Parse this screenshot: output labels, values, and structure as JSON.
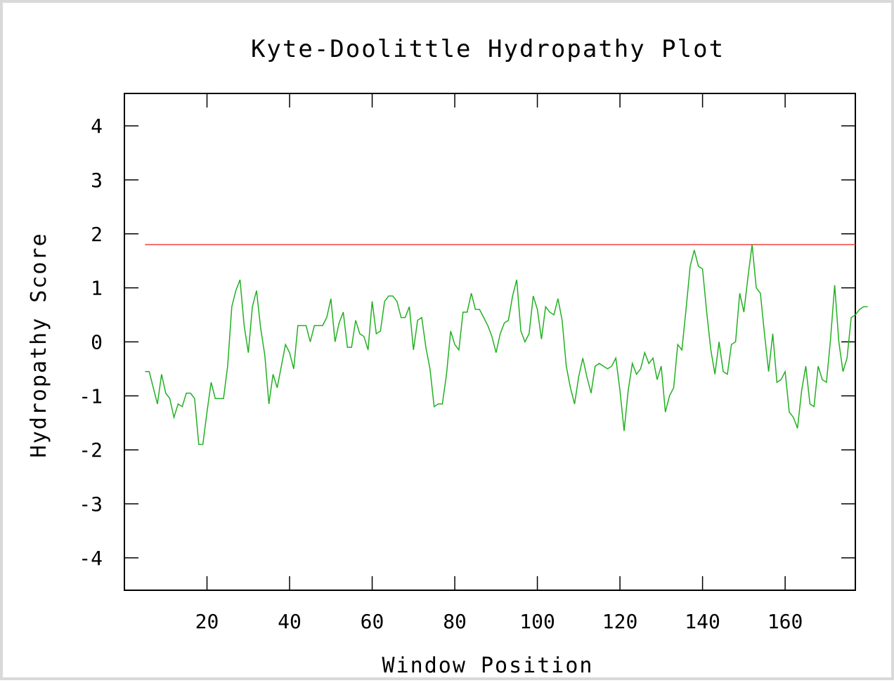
{
  "chart_data": {
    "type": "line",
    "title": "Kyte-Doolittle Hydropathy Plot",
    "xlabel": "Window Position",
    "ylabel": "Hydropathy Score",
    "xlim": [
      0,
      177
    ],
    "ylim": [
      -4.6,
      4.6
    ],
    "x_ticks": [
      20,
      40,
      60,
      80,
      100,
      120,
      140,
      160
    ],
    "x_tick_labels": [
      "20",
      "40",
      "60",
      "80",
      "100",
      "120",
      "140",
      "160"
    ],
    "y_ticks": [
      4,
      3,
      2,
      1,
      0,
      -1,
      -2,
      -3,
      -4
    ],
    "y_tick_labels": [
      "4",
      "3",
      "2",
      "1",
      "0",
      "-1",
      "-2",
      "-3",
      "-4"
    ],
    "grid": false,
    "threshold": {
      "value": 1.8,
      "color": "#f04040"
    },
    "series": [
      {
        "color": "#22b022",
        "x_start": 5,
        "y": [
          -0.55,
          -0.55,
          -0.85,
          -1.15,
          -0.6,
          -0.95,
          -1.05,
          -1.4,
          -1.15,
          -1.2,
          -0.95,
          -0.95,
          -1.05,
          -1.9,
          -1.9,
          -1.3,
          -0.75,
          -1.05,
          -1.05,
          -1.05,
          -0.45,
          0.65,
          0.95,
          1.15,
          0.3,
          -0.2,
          0.65,
          0.95,
          0.25,
          -0.25,
          -1.15,
          -0.6,
          -0.85,
          -0.45,
          -0.05,
          -0.2,
          -0.5,
          0.3,
          0.3,
          0.3,
          0.0,
          0.3,
          0.3,
          0.3,
          0.45,
          0.8,
          0.0,
          0.35,
          0.55,
          -0.1,
          -0.1,
          0.4,
          0.15,
          0.1,
          -0.15,
          0.75,
          0.15,
          0.2,
          0.75,
          0.85,
          0.85,
          0.75,
          0.45,
          0.45,
          0.65,
          -0.15,
          0.4,
          0.45,
          -0.1,
          -0.5,
          -1.2,
          -1.15,
          -1.15,
          -0.6,
          0.2,
          -0.05,
          -0.15,
          0.55,
          0.55,
          0.9,
          0.6,
          0.6,
          0.45,
          0.3,
          0.1,
          -0.2,
          0.15,
          0.35,
          0.4,
          0.85,
          1.15,
          0.2,
          0.0,
          0.15,
          0.85,
          0.6,
          0.05,
          0.65,
          0.55,
          0.5,
          0.8,
          0.4,
          -0.45,
          -0.85,
          -1.15,
          -0.65,
          -0.3,
          -0.65,
          -0.95,
          -0.45,
          -0.4,
          -0.45,
          -0.5,
          -0.45,
          -0.3,
          -0.9,
          -1.65,
          -0.9,
          -0.4,
          -0.6,
          -0.5,
          -0.2,
          -0.4,
          -0.3,
          -0.7,
          -0.45,
          -1.3,
          -1.0,
          -0.85,
          -0.05,
          -0.15,
          0.6,
          1.4,
          1.7,
          1.4,
          1.35,
          0.55,
          -0.15,
          -0.6,
          0.0,
          -0.55,
          -0.6,
          -0.05,
          0.0,
          0.9,
          0.55,
          1.2,
          1.8,
          1.0,
          0.9,
          0.15,
          -0.55,
          0.15,
          -0.75,
          -0.7,
          -0.55,
          -1.3,
          -1.4,
          -1.6,
          -0.9,
          -0.45,
          -1.15,
          -1.2,
          -0.45,
          -0.7,
          -0.75,
          0.05,
          1.05,
          0.0,
          -0.55,
          -0.3,
          0.45,
          0.5,
          0.6,
          0.65,
          0.65
        ]
      }
    ]
  }
}
